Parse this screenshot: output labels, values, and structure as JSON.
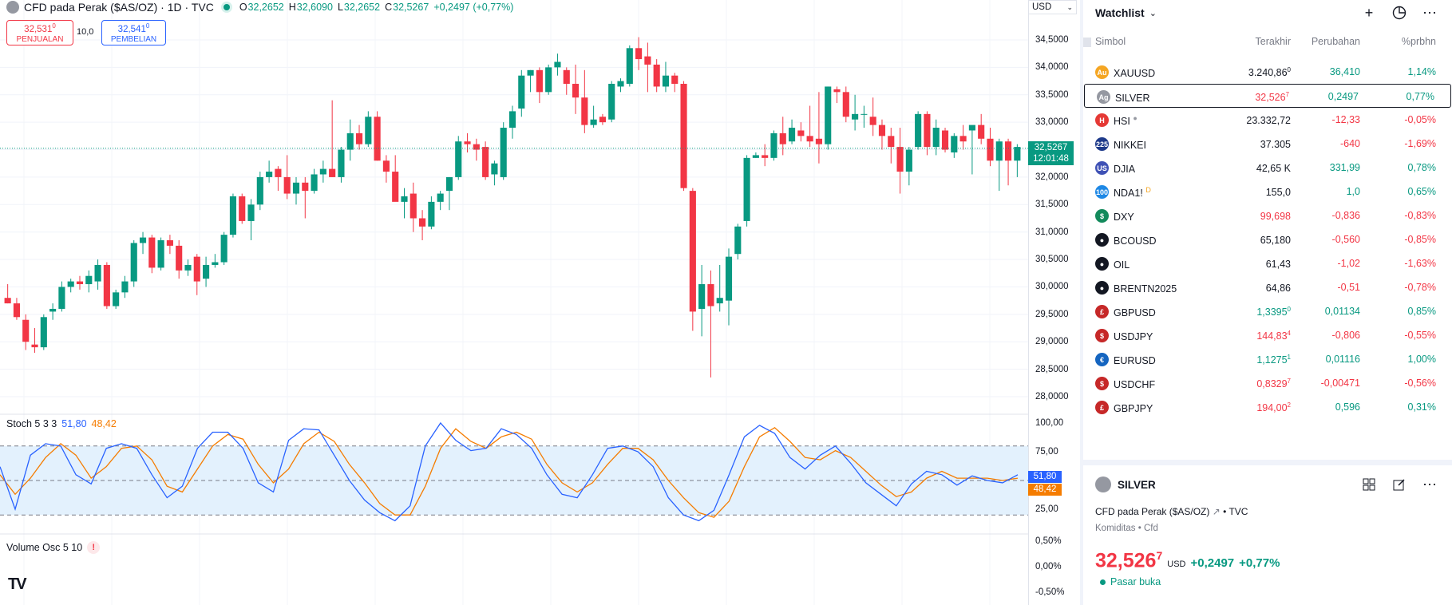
{
  "chart": {
    "symbol_title": "CFD pada Perak ($AS/OZ) · 1D · TVC",
    "ohlc": {
      "o_label": "O",
      "o": "32,2652",
      "h_label": "H",
      "h": "32,6090",
      "l_label": "L",
      "l": "32,2652",
      "c_label": "C",
      "c": "32,5267",
      "change": "+0,2497 (+0,77%)"
    },
    "sell": {
      "price": "32,531",
      "price_sup": "0",
      "label": "PENJUALAN"
    },
    "spread": "10,0",
    "buy": {
      "price": "32,541",
      "price_sup": "0",
      "label": "PEMBELIAN"
    },
    "currency": "USD",
    "last_price": "32,5267",
    "countdown": "12:01:48",
    "price_ticks": [
      "34,5000",
      "34,0000",
      "33,5000",
      "33,0000",
      "32,5000",
      "32,0000",
      "31,5000",
      "31,0000",
      "30,5000",
      "30,0000",
      "29,5000",
      "29,0000",
      "28,5000",
      "28,0000"
    ],
    "candles": [
      [
        29.8,
        30.05,
        29.7,
        29.7
      ],
      [
        29.7,
        29.8,
        29.4,
        29.45
      ],
      [
        29.4,
        29.5,
        28.85,
        29.0
      ],
      [
        28.95,
        29.25,
        28.8,
        28.9
      ],
      [
        28.9,
        29.5,
        28.85,
        29.45
      ],
      [
        29.55,
        29.7,
        29.4,
        29.6
      ],
      [
        29.6,
        30.1,
        29.55,
        30.0
      ],
      [
        30.0,
        30.15,
        29.9,
        30.1
      ],
      [
        30.1,
        30.2,
        29.95,
        30.05
      ],
      [
        30.05,
        30.3,
        29.9,
        30.2
      ],
      [
        30.1,
        30.5,
        29.95,
        30.4
      ],
      [
        30.4,
        30.45,
        29.6,
        29.65
      ],
      [
        29.65,
        29.95,
        29.6,
        29.9
      ],
      [
        29.9,
        30.2,
        29.8,
        30.1
      ],
      [
        30.1,
        30.85,
        30.0,
        30.8
      ],
      [
        30.8,
        31.0,
        30.6,
        30.9
      ],
      [
        30.9,
        30.95,
        30.25,
        30.35
      ],
      [
        30.35,
        30.9,
        30.3,
        30.85
      ],
      [
        30.85,
        30.95,
        30.6,
        30.75
      ],
      [
        30.75,
        30.85,
        30.15,
        30.3
      ],
      [
        30.3,
        30.5,
        30.2,
        30.4
      ],
      [
        30.55,
        30.6,
        29.85,
        30.1
      ],
      [
        30.15,
        30.55,
        30.0,
        30.4
      ],
      [
        30.4,
        30.6,
        30.35,
        30.45
      ],
      [
        30.45,
        31.0,
        30.4,
        30.95
      ],
      [
        30.95,
        31.7,
        30.9,
        31.65
      ],
      [
        31.65,
        31.7,
        31.15,
        31.2
      ],
      [
        31.2,
        31.6,
        30.85,
        31.5
      ],
      [
        31.5,
        32.1,
        31.4,
        32.0
      ],
      [
        32.0,
        32.3,
        31.9,
        32.1
      ],
      [
        32.15,
        32.2,
        31.75,
        32.0
      ],
      [
        32.0,
        32.4,
        31.6,
        31.7
      ],
      [
        31.7,
        32.0,
        31.5,
        31.9
      ],
      [
        31.9,
        32.0,
        31.25,
        31.75
      ],
      [
        31.75,
        32.15,
        31.7,
        32.05
      ],
      [
        32.05,
        32.3,
        31.9,
        32.15
      ],
      [
        32.15,
        33.4,
        32.0,
        32.0
      ],
      [
        32.0,
        32.55,
        31.9,
        32.5
      ],
      [
        32.5,
        33.05,
        32.3,
        32.8
      ],
      [
        32.8,
        32.95,
        32.5,
        32.6
      ],
      [
        32.6,
        33.2,
        32.55,
        33.1
      ],
      [
        33.1,
        33.2,
        32.3,
        32.3
      ],
      [
        32.3,
        32.4,
        31.9,
        32.1
      ],
      [
        32.1,
        32.4,
        31.6,
        31.55
      ],
      [
        31.55,
        31.8,
        31.25,
        31.65
      ],
      [
        31.7,
        31.9,
        31.0,
        31.25
      ],
      [
        31.25,
        31.4,
        30.85,
        31.1
      ],
      [
        31.1,
        31.65,
        31.05,
        31.55
      ],
      [
        31.55,
        31.75,
        31.4,
        31.7
      ],
      [
        31.75,
        32.0,
        31.4,
        32.0
      ],
      [
        32.0,
        32.75,
        31.95,
        32.65
      ],
      [
        32.65,
        32.8,
        32.45,
        32.6
      ],
      [
        32.6,
        32.7,
        32.3,
        32.5
      ],
      [
        32.55,
        32.65,
        31.95,
        32.0
      ],
      [
        32.05,
        32.3,
        31.85,
        32.25
      ],
      [
        32.0,
        33.0,
        31.95,
        32.9
      ],
      [
        32.9,
        33.3,
        32.7,
        33.2
      ],
      [
        33.25,
        33.95,
        33.1,
        33.85
      ],
      [
        33.85,
        33.95,
        33.55,
        33.95
      ],
      [
        33.95,
        34.0,
        33.35,
        33.55
      ],
      [
        33.55,
        34.05,
        33.5,
        34.0
      ],
      [
        34.0,
        34.25,
        33.85,
        34.1
      ],
      [
        33.95,
        34.0,
        33.5,
        33.7
      ],
      [
        33.7,
        34.05,
        33.15,
        33.45
      ],
      [
        33.45,
        33.95,
        32.8,
        32.95
      ],
      [
        32.95,
        33.3,
        32.9,
        33.05
      ],
      [
        33.1,
        33.15,
        32.95,
        33.0
      ],
      [
        33.05,
        33.75,
        33.0,
        33.7
      ],
      [
        33.65,
        33.8,
        33.55,
        33.75
      ],
      [
        33.7,
        34.4,
        33.65,
        34.35
      ],
      [
        34.35,
        34.55,
        33.95,
        34.15
      ],
      [
        34.2,
        34.45,
        33.55,
        34.05
      ],
      [
        34.05,
        34.15,
        33.55,
        33.65
      ],
      [
        33.65,
        34.1,
        33.55,
        33.85
      ],
      [
        33.85,
        33.9,
        33.55,
        33.7
      ],
      [
        33.7,
        33.75,
        31.75,
        31.8
      ],
      [
        31.75,
        31.8,
        29.2,
        29.55
      ],
      [
        29.6,
        30.4,
        29.1,
        30.05
      ],
      [
        30.05,
        30.3,
        28.35,
        29.65
      ],
      [
        29.7,
        30.4,
        29.55,
        29.8
      ],
      [
        29.75,
        30.7,
        29.3,
        30.55
      ],
      [
        30.6,
        31.15,
        30.5,
        31.1
      ],
      [
        31.2,
        32.4,
        31.1,
        32.35
      ],
      [
        32.35,
        32.45,
        32.35,
        32.4
      ],
      [
        32.4,
        32.6,
        32.2,
        32.35
      ],
      [
        32.35,
        32.85,
        32.3,
        32.8
      ],
      [
        32.8,
        33.1,
        32.4,
        32.6
      ],
      [
        32.65,
        33.05,
        32.6,
        32.9
      ],
      [
        32.85,
        33.0,
        32.65,
        32.75
      ],
      [
        32.75,
        33.3,
        32.55,
        32.65
      ],
      [
        32.7,
        33.55,
        32.25,
        32.6
      ],
      [
        32.6,
        33.65,
        32.5,
        33.65
      ],
      [
        33.6,
        33.65,
        33.35,
        33.55
      ],
      [
        33.55,
        33.65,
        33.0,
        33.1
      ],
      [
        33.05,
        33.5,
        32.85,
        33.15
      ],
      [
        33.15,
        33.3,
        32.9,
        33.15
      ],
      [
        33.1,
        33.45,
        32.75,
        32.95
      ],
      [
        32.95,
        33.05,
        32.5,
        32.75
      ],
      [
        32.75,
        32.9,
        32.25,
        32.55
      ],
      [
        32.55,
        32.9,
        31.7,
        32.1
      ],
      [
        32.1,
        32.55,
        31.85,
        32.5
      ],
      [
        32.55,
        33.2,
        32.5,
        33.15
      ],
      [
        33.15,
        33.2,
        32.4,
        32.55
      ],
      [
        32.55,
        33.05,
        32.4,
        32.9
      ],
      [
        32.85,
        32.9,
        32.45,
        32.5
      ],
      [
        32.45,
        32.8,
        32.35,
        32.75
      ],
      [
        32.75,
        32.95,
        32.5,
        32.65
      ],
      [
        32.85,
        32.9,
        32.05,
        32.95
      ],
      [
        32.95,
        33.15,
        32.6,
        32.7
      ],
      [
        32.7,
        32.9,
        32.2,
        32.3
      ],
      [
        32.3,
        32.7,
        31.75,
        32.65
      ],
      [
        32.65,
        32.7,
        31.85,
        32.3
      ],
      [
        32.3,
        32.6,
        32.0,
        32.55
      ]
    ],
    "stoch_title": "Stoch 5 3 3",
    "stoch_k": "51,80",
    "stoch_d": "48,42",
    "stoch_ticks": [
      "100,00",
      "75,00",
      "25,00"
    ],
    "stoch_k_series": [
      62,
      25,
      72,
      82,
      80,
      55,
      47,
      78,
      82,
      78,
      55,
      35,
      45,
      78,
      92,
      92,
      78,
      48,
      40,
      85,
      95,
      94,
      72,
      50,
      33,
      22,
      15,
      28,
      80,
      100,
      85,
      76,
      78,
      95,
      90,
      78,
      55,
      38,
      35,
      55,
      78,
      80,
      75,
      62,
      35,
      20,
      15,
      24,
      55,
      88,
      98,
      91,
      70,
      60,
      72,
      80,
      65,
      48,
      38,
      28,
      47,
      58,
      55,
      46,
      54,
      50,
      48,
      55
    ],
    "stoch_d_series": [
      55,
      38,
      52,
      70,
      82,
      72,
      52,
      62,
      78,
      80,
      68,
      45,
      40,
      60,
      80,
      90,
      86,
      64,
      48,
      60,
      82,
      92,
      84,
      64,
      48,
      30,
      20,
      20,
      45,
      78,
      95,
      84,
      78,
      88,
      92,
      86,
      64,
      48,
      40,
      48,
      64,
      78,
      78,
      68,
      50,
      35,
      22,
      18,
      32,
      62,
      88,
      96,
      84,
      70,
      68,
      76,
      70,
      58,
      46,
      36,
      40,
      52,
      58,
      52,
      52,
      52,
      50,
      52
    ],
    "volume_title": "Volume Osc 5 10",
    "volume_ticks": [
      "0,50%",
      "0,00%",
      "-0,50%"
    ],
    "colors": {
      "up": "#089981",
      "down": "#f23645",
      "k": "#2962ff",
      "d": "#f57c00",
      "band": "#e3f1fd"
    }
  },
  "watchlist": {
    "title": "Watchlist",
    "columns": [
      "Simbol",
      "Terakhir",
      "Perubahan",
      "%prbhn"
    ],
    "rows": [
      {
        "icon_text": "Au",
        "icon_color": "#f5a623",
        "symbol": "XAUUSD",
        "last": "3.240,86",
        "last_sup": "0",
        "last_cls": "",
        "chg": "36,410",
        "chg_cls": "pos",
        "pct": "1,14%",
        "pct_cls": "pos",
        "sel": false,
        "mark": ""
      },
      {
        "icon_text": "Ag",
        "icon_color": "#9598a1",
        "symbol": "SILVER",
        "last": "32,526",
        "last_sup": "7",
        "last_cls": "neg",
        "chg": "0,2497",
        "chg_cls": "pos",
        "pct": "0,77%",
        "pct_cls": "pos",
        "sel": true,
        "mark": ""
      },
      {
        "icon_text": "H",
        "icon_color": "#e53935",
        "symbol": "HSI",
        "last": "23.332,72",
        "last_sup": "",
        "last_cls": "",
        "chg": "-12,33",
        "chg_cls": "neg",
        "pct": "-0,05%",
        "pct_cls": "neg",
        "sel": false,
        "mark": "●"
      },
      {
        "icon_text": "225",
        "icon_color": "#1e3a8a",
        "symbol": "NIKKEI",
        "last": "37.305",
        "last_sup": "",
        "last_cls": "",
        "chg": "-640",
        "chg_cls": "neg",
        "pct": "-1,69%",
        "pct_cls": "neg",
        "sel": false,
        "mark": ""
      },
      {
        "icon_text": "US",
        "icon_color": "#3f51b5",
        "symbol": "DJIA",
        "last": "42,65 K",
        "last_sup": "",
        "last_cls": "",
        "chg": "331,99",
        "chg_cls": "pos",
        "pct": "0,78%",
        "pct_cls": "pos",
        "sel": false,
        "mark": ""
      },
      {
        "icon_text": "100",
        "icon_color": "#1e88e5",
        "symbol": "NDA1!",
        "last": "155,0",
        "last_sup": "",
        "last_cls": "",
        "chg": "1,0",
        "chg_cls": "pos",
        "pct": "0,65%",
        "pct_cls": "pos",
        "sel": false,
        "mark": "D"
      },
      {
        "icon_text": "$",
        "icon_color": "#138a5c",
        "symbol": "DXY",
        "last": "99,698",
        "last_sup": "",
        "last_cls": "neg",
        "chg": "-0,836",
        "chg_cls": "neg",
        "pct": "-0,83%",
        "pct_cls": "neg",
        "sel": false,
        "mark": ""
      },
      {
        "icon_text": "●",
        "icon_color": "#131722",
        "symbol": "BCOUSD",
        "last": "65,180",
        "last_sup": "",
        "last_cls": "",
        "chg": "-0,560",
        "chg_cls": "neg",
        "pct": "-0,85%",
        "pct_cls": "neg",
        "sel": false,
        "mark": ""
      },
      {
        "icon_text": "●",
        "icon_color": "#131722",
        "symbol": "OIL",
        "last": "61,43",
        "last_sup": "",
        "last_cls": "",
        "chg": "-1,02",
        "chg_cls": "neg",
        "pct": "-1,63%",
        "pct_cls": "neg",
        "sel": false,
        "mark": ""
      },
      {
        "icon_text": "●",
        "icon_color": "#131722",
        "symbol": "BRENTN2025",
        "last": "64,86",
        "last_sup": "",
        "last_cls": "",
        "chg": "-0,51",
        "chg_cls": "neg",
        "pct": "-0,78%",
        "pct_cls": "neg",
        "sel": false,
        "mark": ""
      },
      {
        "icon_text": "£",
        "icon_color": "#c62828",
        "symbol": "GBPUSD",
        "last": "1,3395",
        "last_sup": "0",
        "last_cls": "pos",
        "chg": "0,01134",
        "chg_cls": "pos",
        "pct": "0,85%",
        "pct_cls": "pos",
        "sel": false,
        "mark": ""
      },
      {
        "icon_text": "$",
        "icon_color": "#c62828",
        "symbol": "USDJPY",
        "last": "144,83",
        "last_sup": "4",
        "last_cls": "neg",
        "chg": "-0,806",
        "chg_cls": "neg",
        "pct": "-0,55%",
        "pct_cls": "neg",
        "sel": false,
        "mark": ""
      },
      {
        "icon_text": "€",
        "icon_color": "#1565c0",
        "symbol": "EURUSD",
        "last": "1,1275",
        "last_sup": "1",
        "last_cls": "pos",
        "chg": "0,01116",
        "chg_cls": "pos",
        "pct": "1,00%",
        "pct_cls": "pos",
        "sel": false,
        "mark": ""
      },
      {
        "icon_text": "$",
        "icon_color": "#c62828",
        "symbol": "USDCHF",
        "last": "0,8329",
        "last_sup": "7",
        "last_cls": "neg",
        "chg": "-0,00471",
        "chg_cls": "neg",
        "pct": "-0,56%",
        "pct_cls": "neg",
        "sel": false,
        "mark": ""
      },
      {
        "icon_text": "£",
        "icon_color": "#c62828",
        "symbol": "GBPJPY",
        "last": "194,00",
        "last_sup": "2",
        "last_cls": "neg",
        "chg": "0,596",
        "chg_cls": "pos",
        "pct": "0,31%",
        "pct_cls": "pos",
        "sel": false,
        "mark": ""
      }
    ]
  },
  "details": {
    "symbol": "SILVER",
    "description": "CFD pada Perak ($AS/OZ)",
    "source": "TVC",
    "category": "Komiditas",
    "category_type": "Cfd",
    "price": "32,526",
    "price_sup": "7",
    "unit": "USD",
    "change": "+0,2497",
    "change_pct": "+0,77%",
    "market_status": "Pasar buka"
  }
}
